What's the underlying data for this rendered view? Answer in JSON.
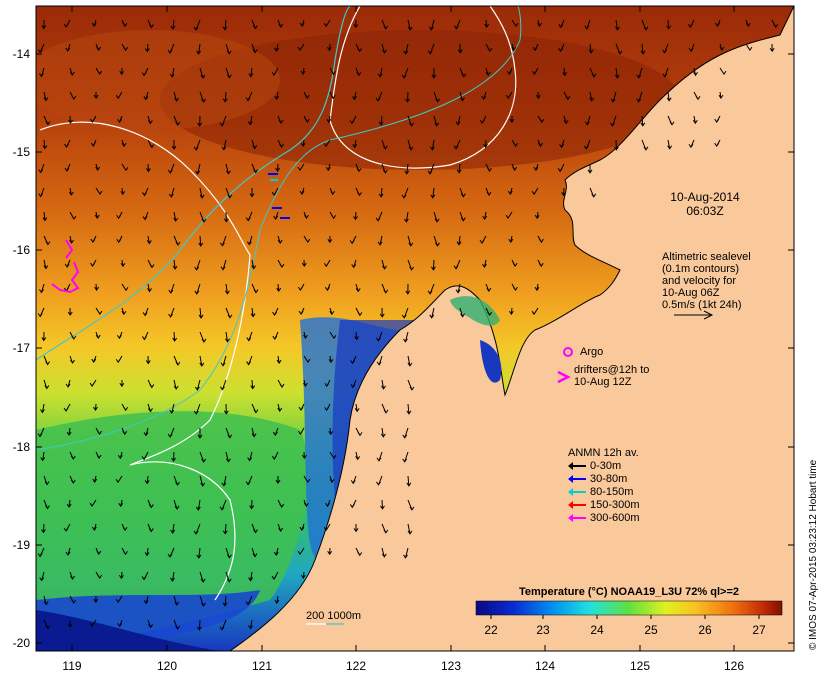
{
  "map": {
    "lat_ticks": [
      "-14",
      "-15",
      "-16",
      "-17",
      "-18",
      "-19",
      "-20"
    ],
    "lon_ticks": [
      "119",
      "120",
      "121",
      "122",
      "123",
      "124",
      "125",
      "126"
    ],
    "date_line1": "10-Aug-2014",
    "date_line2": "06:03Z",
    "altimetry_lines": [
      "Altimetric sealevel",
      "(0.1m contours)",
      "and velocity for",
      "10-Aug 06Z",
      "0.5m/s (1kt 24h)"
    ],
    "argo_label": "Argo",
    "drifters_line1": "drifters@12h to",
    "drifters_line2": "10-Aug 12Z",
    "anmn_title": "ANMN 12h av.",
    "anmn_legend": [
      {
        "label": "0-30m",
        "color": "#000000"
      },
      {
        "label": "30-80m",
        "color": "#0000ff"
      },
      {
        "label": "80-150m",
        "color": "#00d0d0"
      },
      {
        "label": "150-300m",
        "color": "#ff0000"
      },
      {
        "label": "300-600m",
        "color": "#ff00ff"
      }
    ],
    "isobath_label": "200  1000m",
    "colorbar_title": "Temperature (°C) NOAA19_L3U 72% ql>=2",
    "colorbar_ticks": [
      "22",
      "23",
      "24",
      "25",
      "26",
      "27"
    ],
    "credit": "© IMOS 07-Apr-2015 03:23:12 Hobart time",
    "colors": {
      "land": "#f9c89b",
      "magenta": "#ff00ff",
      "isobath_200": "#ffffff",
      "isobath_1000": "#40c8c8"
    }
  }
}
